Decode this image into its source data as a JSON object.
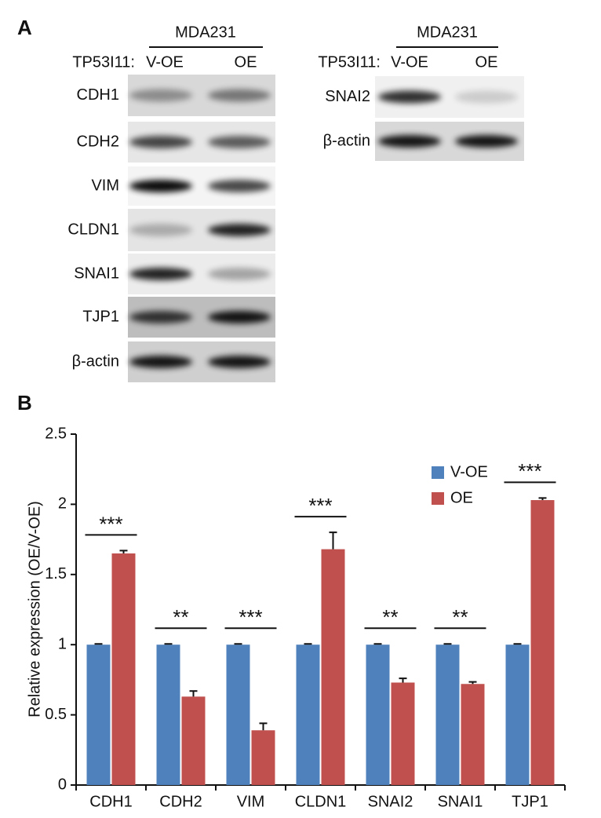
{
  "panel_a": {
    "label": "A",
    "left_blot": {
      "cell_line": "MDA231",
      "condition_label": "TP53I11:",
      "lanes": [
        "V-OE",
        "OE"
      ],
      "rows": [
        "CDH1",
        "CDH2",
        "VIM",
        "CLDN1",
        "SNAI1",
        "TJP1",
        "β-actin"
      ]
    },
    "right_blot": {
      "cell_line": "MDA231",
      "condition_label": "TP53I11:",
      "lanes": [
        "V-OE",
        "OE"
      ],
      "rows": [
        "SNAI2",
        "β-actin"
      ]
    }
  },
  "panel_b": {
    "label": "B"
  },
  "chart_data": {
    "type": "bar",
    "y_label": "Relative expression (OE/V-OE)",
    "categories": [
      "CDH1",
      "CDH2",
      "VIM",
      "CLDN1",
      "SNAI2",
      "SNAI1",
      "TJP1"
    ],
    "series": [
      {
        "name": "V-OE",
        "color": "#4f81bd",
        "values": [
          1,
          1,
          1,
          1,
          1,
          1,
          1
        ],
        "errors": [
          0.005,
          0.005,
          0.005,
          0.005,
          0.005,
          0.005,
          0.005
        ]
      },
      {
        "name": "OE",
        "color": "#c0504d",
        "values": [
          1.65,
          0.63,
          0.39,
          1.68,
          0.73,
          0.72,
          2.03
        ],
        "errors": [
          0.02,
          0.04,
          0.05,
          0.12,
          0.03,
          0.015,
          0.015
        ]
      }
    ],
    "significance": [
      "***",
      "**",
      "***",
      "***",
      "**",
      "**",
      "***"
    ],
    "ylim": [
      0,
      2.5
    ],
    "yticks": [
      0,
      0.5,
      1,
      1.5,
      2,
      2.5
    ],
    "legend": "upper right"
  }
}
